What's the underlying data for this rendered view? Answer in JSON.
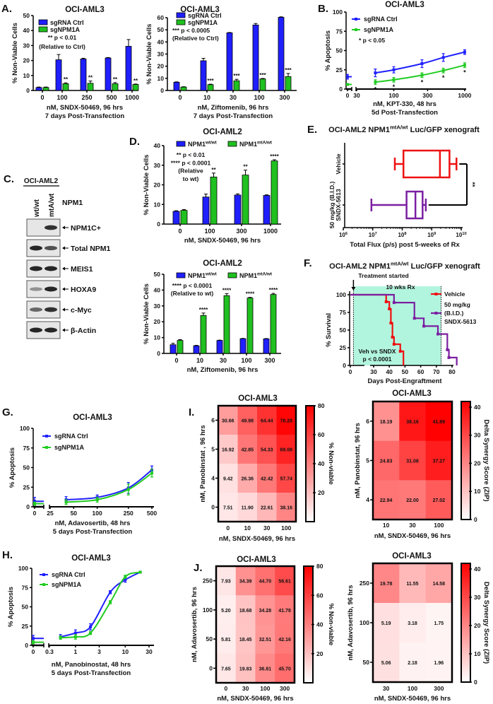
{
  "panel_labels": {
    "A": "A.",
    "B": "B.",
    "C": "C.",
    "D": "D.",
    "E": "E.",
    "F": "F.",
    "G": "G.",
    "H": "H.",
    "I": "I.",
    "J": "J."
  },
  "western_blot": {
    "cell_line": "OCI-AML2",
    "lanes": [
      "wt/wt",
      "mtA/wt"
    ],
    "lane_header": "NPM1",
    "blots": [
      {
        "name": "NPM1C+",
        "intensity": [
          0,
          0.85
        ]
      },
      {
        "name": "Total NPM1",
        "intensity": [
          0.9,
          0.7
        ]
      },
      {
        "name": "MEIS1",
        "intensity": [
          0.9,
          0.9
        ]
      },
      {
        "name": "HOXA9",
        "intensity": [
          0.4,
          0.9
        ]
      },
      {
        "name": "c-Myc",
        "intensity": [
          0.6,
          0.85
        ]
      },
      {
        "name": "β-Actin",
        "intensity": [
          0.9,
          0.9
        ]
      }
    ]
  },
  "chart_data": [
    {
      "id": "A1",
      "type": "bar",
      "title": "OCI-AML3",
      "categories": [
        "0",
        "100",
        "250",
        "500",
        "1000"
      ],
      "series": [
        {
          "name": "sgRNA Ctrl",
          "color": "#1f1fff",
          "values": [
            2,
            20.5,
            21,
            21.7,
            29.5
          ],
          "errors": [
            0.3,
            3.5,
            0.5,
            0.3,
            4.5
          ]
        },
        {
          "name": "sgNPM1A",
          "color": "#1fc01f",
          "values": [
            2,
            4.5,
            4.8,
            4.5,
            4
          ],
          "errors": [
            0.3,
            0.6,
            1.5,
            0.8,
            0.3
          ],
          "significance": [
            "",
            "**",
            "**",
            "**",
            "**"
          ]
        }
      ],
      "ylabel": "% Non-Viable Cells",
      "xlabel": "nM, SNDX-50469, 96 hrs",
      "xlabel2": "7 days Post-Transfection",
      "ylim": [
        0,
        50
      ],
      "yticks": [
        0,
        10,
        20,
        30,
        40,
        50
      ],
      "annotations": [
        "** p < 0.01",
        "(Relative to Ctrl)"
      ]
    },
    {
      "id": "A2",
      "type": "bar",
      "title": "OCI-AML3",
      "categories": [
        "0",
        "10",
        "30",
        "100",
        "300"
      ],
      "series": [
        {
          "name": "sgRNA Ctrl",
          "color": "#1f1fff",
          "values": [
            6.8,
            24.5,
            47.5,
            54,
            60.3
          ],
          "errors": [
            0.3,
            2,
            0.3,
            1.2,
            0.4
          ]
        },
        {
          "name": "sgNPM1A",
          "color": "#1fc01f",
          "values": [
            2.8,
            4.8,
            8,
            9.5,
            11.5
          ],
          "errors": [
            0.3,
            0.4,
            1.2,
            0.4,
            2.5
          ],
          "significance": [
            "",
            "***",
            "***",
            "***",
            "***"
          ]
        }
      ],
      "ylabel": "% Non-Viable Cells",
      "xlabel": "nM, Ziftomenib, 96 hrs",
      "xlabel2": "7 days Post-Transfection",
      "ylim": [
        0,
        60
      ],
      "yticks": [
        0,
        10,
        20,
        30,
        40,
        50,
        60
      ],
      "annotations": [
        "*** p < 0.0005",
        "(Relative to Ctrl)"
      ]
    },
    {
      "id": "B",
      "type": "line",
      "title": "OCI-AML3",
      "x": [
        0,
        55,
        100,
        250,
        500,
        1000
      ],
      "xticks": [
        0,
        30,
        100,
        300,
        1000
      ],
      "series": [
        {
          "name": "sgRNA Ctrl",
          "color": "#2020ff",
          "values": [
            16,
            21,
            25,
            33,
            41,
            48
          ],
          "errors": [
            3,
            5,
            4,
            5,
            5,
            3
          ]
        },
        {
          "name": "sgNPM1A",
          "color": "#22cc22",
          "values": [
            6,
            9,
            12,
            18,
            24,
            31
          ],
          "errors": [
            1,
            3,
            3,
            3,
            3,
            3
          ],
          "significance": [
            "",
            "*",
            "*",
            "*",
            "*",
            "*"
          ]
        }
      ],
      "ylabel": "% Apoptosis",
      "xlabel": "nM, KPT-330, 48 hrs",
      "xlabel2": "5d Post-Transfection",
      "ylim": [
        0,
        100
      ],
      "yticks": [
        0,
        25,
        50,
        75,
        100
      ],
      "annotations": [
        "* p < 0.05"
      ]
    },
    {
      "id": "D1",
      "type": "bar",
      "title": "OCI-AML2",
      "categories": [
        "0",
        "100",
        "300",
        "1000"
      ],
      "series": [
        {
          "name": "NPM1",
          "name_sup": "wt/wt",
          "color": "#1f1fff",
          "values": [
            6.5,
            13.8,
            14.8,
            14.6
          ],
          "errors": [
            0.3,
            1.5,
            0.6,
            0.3
          ]
        },
        {
          "name": "NPM1",
          "name_sup": "mtA/wt",
          "color": "#1fc01f",
          "values": [
            7,
            24,
            25,
            32.2
          ],
          "errors": [
            0.4,
            2,
            2.5,
            0.6
          ],
          "significance": [
            "",
            "**",
            "**",
            "****"
          ]
        }
      ],
      "ylabel": "% Non-Viable Cells",
      "xlabel": "nM, SNDX-50469, 96 hrs",
      "ylim": [
        0,
        40
      ],
      "yticks": [
        0,
        10,
        20,
        30,
        40
      ],
      "annotations": [
        "** p < 0.01",
        "**** p < 0.0001",
        "(Relative",
        "to wt)"
      ]
    },
    {
      "id": "D2",
      "type": "bar",
      "title": "OCI-AML2",
      "categories": [
        "0",
        "10",
        "30",
        "100",
        "300"
      ],
      "series": [
        {
          "name": "NPM1",
          "name_sup": "wt/wt",
          "color": "#1f1fff",
          "values": [
            5.5,
            4.8,
            8.2,
            9.3,
            9.2
          ],
          "errors": [
            0.9,
            0.3,
            0.2,
            0.2,
            0.2
          ]
        },
        {
          "name": "NPM1",
          "name_sup": "mtA/wt",
          "color": "#1fc01f",
          "values": [
            8.2,
            24,
            36.5,
            35,
            37.2
          ],
          "errors": [
            0.5,
            1.5,
            1.3,
            0.4,
            0.7
          ],
          "significance": [
            "",
            "****",
            "****",
            "****",
            "****"
          ]
        }
      ],
      "ylabel": "% Non-Viable Cells",
      "xlabel": "nM, Ziftomenib, 96 hrs",
      "ylim": [
        0,
        50
      ],
      "yticks": [
        0,
        10,
        20,
        30,
        40,
        50
      ],
      "annotations": [
        "**** p < 0.0001",
        "(Relative to wt)"
      ]
    },
    {
      "id": "E",
      "type": "box",
      "title_prefix": "OCI-AML2 NPM1",
      "title_sup": "mtA/wt",
      "title_suffix": " Luc/GFP xenograft",
      "xlabel": "Total Flux (p/s) post 5-weeks of Rx",
      "xtick_base": "10",
      "xtick_exponents": [
        "6",
        "7",
        "8",
        "9",
        "10"
      ],
      "significance": "**",
      "groups": [
        {
          "label_lines": [
            "Vehicle"
          ],
          "color": "#ee1111",
          "min": 56000000.0,
          "q1": 110000000.0,
          "median": 1900000000.0,
          "q3": 4000000000.0,
          "max": 6900000000.0
        },
        {
          "label_lines": [
            "50 mg/kg (B.I.D.)",
            "SNDX-5613"
          ],
          "color": "#7b1fa2",
          "min": 9000000.0,
          "q1": 140000000.0,
          "median": 280000000.0,
          "q3": 490000000.0,
          "max": 630000000.0
        }
      ]
    },
    {
      "id": "F",
      "type": "survival",
      "title_prefix": "OCI-AML2 NPM1",
      "title_sup": "mtA/wt",
      "title_suffix": " Luc/GFP xenograft",
      "ylabel": "% Survival",
      "xlabel": "Days Post-Engraftment",
      "yticks": [
        0,
        25,
        50,
        75,
        100
      ],
      "xticks": [
        0,
        30,
        40,
        50,
        60,
        70,
        80
      ],
      "treatment_label": "Treatment started",
      "treatment_duration_label": "10 wks Rx",
      "treatment_start_day": 4,
      "treatment_end_day": 73,
      "shading_color": "#b2f5de",
      "stat_lines": [
        "Veh vs SNDX",
        "p < 0.0001"
      ],
      "series": [
        {
          "name_lines": [
            "Vehicle"
          ],
          "color": "#ee1111",
          "steps": [
            [
              0,
              100
            ],
            [
              38,
              90
            ],
            [
              40,
              80
            ],
            [
              41,
              60
            ],
            [
              42,
              40
            ],
            [
              43,
              30
            ],
            [
              47,
              20
            ],
            [
              49,
              0
            ]
          ]
        },
        {
          "name_lines": [
            "50 mg/kg",
            "(B.I.D.)",
            "SNDX-5613"
          ],
          "color": "#7b1fa2",
          "steps": [
            [
              0,
              100
            ],
            [
              43,
              88.9
            ],
            [
              56,
              66.7
            ],
            [
              62,
              55.6
            ],
            [
              71,
              44.4
            ],
            [
              77,
              22.2
            ],
            [
              78,
              11.1
            ],
            [
              83,
              0
            ]
          ]
        }
      ]
    },
    {
      "id": "G",
      "type": "line",
      "title": "OCI-AML3",
      "x": [
        0,
        40,
        100,
        250,
        500
      ],
      "xticks": [
        0,
        25,
        50,
        100,
        250,
        500
      ],
      "series": [
        {
          "name": "sgRNA Ctrl",
          "color": "#2020ff",
          "values": [
            7,
            9,
            12,
            24,
            47
          ],
          "errors": [
            5,
            4,
            3,
            7,
            5
          ]
        },
        {
          "name": "sgNPM1A",
          "color": "#22cc22",
          "values": [
            4,
            6,
            9,
            22,
            43
          ],
          "errors": [
            2,
            3,
            3,
            7,
            5
          ]
        }
      ],
      "ylabel": "% Apoptosis",
      "xlabel": "nM, Adavosertib, 48 hrs",
      "xlabel2": "5 days Post-Transfection",
      "ylim": [
        0,
        100
      ],
      "yticks": [
        0,
        25,
        50,
        75,
        100
      ],
      "annotations": []
    },
    {
      "id": "H",
      "type": "line",
      "title": "OCI-AML3",
      "x": [
        0,
        0.5,
        1,
        2,
        5,
        10,
        20
      ],
      "xticks": [
        0,
        0.3,
        1,
        3,
        10,
        30
      ],
      "series": [
        {
          "name": "sgRNA Ctrl",
          "color": "#2020ff",
          "values": [
            9,
            11,
            16,
            24,
            69,
            85,
            95
          ],
          "errors": [
            4,
            3,
            4,
            4,
            2,
            3,
            1
          ]
        },
        {
          "name": "sgNPM1A",
          "color": "#22cc22",
          "values": [
            4,
            10,
            11,
            16,
            56,
            89,
            95
          ],
          "errors": [
            2,
            2,
            3,
            2,
            2,
            2,
            1
          ]
        }
      ],
      "ylabel": "% Apoptosis",
      "xlabel": "nM, Panobinostat, 48 hrs",
      "xlabel2": "5 days Post-Transfection",
      "ylim": [
        0,
        100
      ],
      "yticks": [
        0,
        25,
        50,
        75,
        100
      ],
      "annotations": []
    },
    {
      "id": "I1",
      "type": "heatmap",
      "title": "OCI-AML3",
      "row_labels": [
        "6",
        "5",
        "4",
        "0"
      ],
      "col_labels": [
        "0",
        "10",
        "30",
        "100"
      ],
      "values": [
        [
          "30.66",
          "49.98",
          "64.44",
          "78.28"
        ],
        [
          "16.92",
          "42.85",
          "54.33",
          "69.08"
        ],
        [
          "9.42",
          "26.36",
          "42.42",
          "57.74"
        ],
        [
          "7.51",
          "11.90",
          "22.61",
          "38.16"
        ]
      ],
      "ylabel": "nM, Panobinstat , 96 hrs",
      "xlabel": "nM,  SNDX-50469, 96 hrs",
      "colorbar_label": "% Non-viable",
      "colorbar_max": 80,
      "colorbar_ticks": [
        "20",
        "40",
        "60",
        "80"
      ]
    },
    {
      "id": "I2",
      "type": "heatmap",
      "title": "OCI-AML3",
      "row_labels": [
        "6",
        "5",
        "4"
      ],
      "col_labels": [
        "10",
        "30",
        "100"
      ],
      "values": [
        [
          "18.19",
          "38.16",
          "41.89"
        ],
        [
          "24.83",
          "31.08",
          "37.27"
        ],
        [
          "22.94",
          "22.00",
          "27.02"
        ]
      ],
      "ylabel": "nM, Panobinstat, 96 hrs",
      "xlabel": "nM,  SNDX-50469, 96 hrs",
      "colorbar_label": "Delta Synergy Score (ZIP)",
      "colorbar_max": 42,
      "colorbar_ticks": [
        "0",
        "10",
        "20",
        "30",
        "40"
      ]
    },
    {
      "id": "J1",
      "type": "heatmap",
      "title": "OCI-AML3",
      "row_labels": [
        "250",
        "100",
        "50",
        "0"
      ],
      "col_labels": [
        "0",
        "30",
        "100",
        "300"
      ],
      "values": [
        [
          "7.93",
          "34.39",
          "44.70",
          "56.61"
        ],
        [
          "5.20",
          "18.68",
          "34.28",
          "41.78"
        ],
        [
          "5.81",
          "18.45",
          "32.51",
          "42.16"
        ],
        [
          "7.65",
          "19.83",
          "36.81",
          "45.70"
        ]
      ],
      "ylabel": "nM, Adavosertib, 96 hrs",
      "xlabel": "nM,  SNDX-50469, 96 hrs",
      "colorbar_label": "% Non-viable",
      "colorbar_max": 80,
      "colorbar_ticks": [
        "20",
        "40",
        "60",
        "80"
      ]
    },
    {
      "id": "J2",
      "type": "heatmap",
      "title": "OCI-AML3",
      "row_labels": [
        "250",
        "100",
        "50"
      ],
      "col_labels": [
        "30",
        "100",
        "300"
      ],
      "values": [
        [
          "19.78",
          "11.55",
          "14.58"
        ],
        [
          "5.19",
          "3.18",
          "1.75"
        ],
        [
          "5.06",
          "2.18",
          "1.96"
        ]
      ],
      "ylabel": "nM, Adavosertib, 96 hrs",
      "xlabel": "nM,  SNDX-50469, 96 hrs",
      "colorbar_label": "Delta Synergy Score (ZIP)",
      "colorbar_max": 42,
      "colorbar_ticks": [
        "0",
        "10",
        "20",
        "30",
        "40"
      ]
    }
  ]
}
